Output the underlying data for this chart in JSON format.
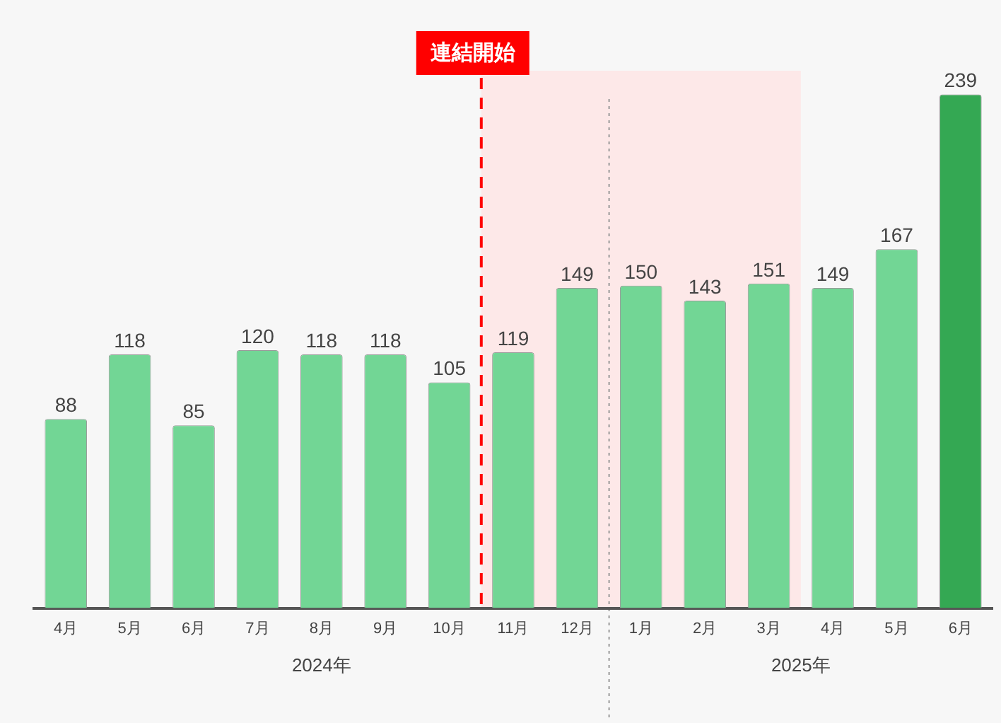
{
  "chart_data": {
    "type": "bar",
    "categories": [
      "4月",
      "5月",
      "6月",
      "7月",
      "8月",
      "9月",
      "10月",
      "11月",
      "12月",
      "1月",
      "2月",
      "3月",
      "4月",
      "5月",
      "6月"
    ],
    "values": [
      88,
      118,
      85,
      120,
      118,
      118,
      105,
      119,
      149,
      150,
      143,
      151,
      149,
      167,
      239
    ],
    "colors": [
      "#72d695",
      "#72d695",
      "#72d695",
      "#72d695",
      "#72d695",
      "#72d695",
      "#72d695",
      "#72d695",
      "#72d695",
      "#72d695",
      "#72d695",
      "#72d695",
      "#72d695",
      "#72d695",
      "#34a853"
    ],
    "data_labels": true,
    "ref_lines": [
      {
        "axis": "x",
        "value": "11月",
        "label": "連結開始",
        "color": "#ff0000",
        "line_style": "dashed"
      },
      {
        "axis": "x",
        "value": "1月",
        "color": "#999999",
        "line_style": "dotted"
      }
    ],
    "bands": [
      {
        "axis": "x",
        "from": "11月",
        "to": "3月",
        "color": "#fde8e8"
      }
    ],
    "annotations": [
      "2024年",
      "2025年"
    ],
    "grid": false,
    "legend": false,
    "tick_labels": "x"
  }
}
